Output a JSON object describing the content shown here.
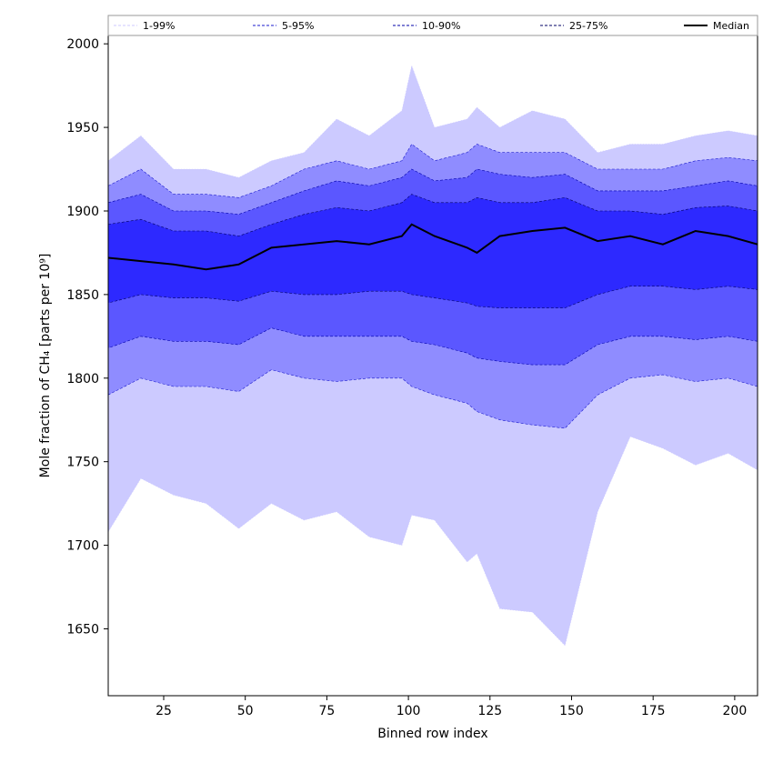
{
  "chart_data": {
    "type": "area",
    "xlabel": "Binned row index",
    "ylabel": "Mole fraction of CH₄ [parts per 10⁹]",
    "xlim": [
      8,
      207
    ],
    "ylim": [
      1610,
      2005
    ],
    "xticks": [
      25,
      50,
      75,
      100,
      125,
      150,
      175,
      200
    ],
    "yticks": [
      1650,
      1700,
      1750,
      1800,
      1850,
      1900,
      1950,
      2000
    ],
    "grid": false,
    "legend_position": "top, above plot area",
    "x": [
      8,
      18,
      28,
      38,
      48,
      58,
      68,
      78,
      88,
      98,
      101,
      108,
      118,
      121,
      128,
      138,
      148,
      158,
      168,
      178,
      188,
      198,
      207
    ],
    "bands": [
      {
        "name": "1-99%",
        "color": "#cccaff",
        "edge_color": "#cccaff",
        "lower": [
          1708,
          1740,
          1730,
          1725,
          1710,
          1725,
          1715,
          1720,
          1705,
          1700,
          1718,
          1715,
          1690,
          1695,
          1662,
          1660,
          1640,
          1720,
          1765,
          1758,
          1748,
          1755,
          1745
        ],
        "upper": [
          1930,
          1945,
          1925,
          1925,
          1920,
          1930,
          1935,
          1955,
          1945,
          1960,
          1987,
          1950,
          1955,
          1962,
          1950,
          1960,
          1955,
          1935,
          1940,
          1940,
          1945,
          1948,
          1945
        ]
      },
      {
        "name": "5-95%",
        "color": "#8f8cff",
        "edge_color": "#1a1acc",
        "lower": [
          1790,
          1800,
          1795,
          1795,
          1792,
          1805,
          1800,
          1798,
          1800,
          1800,
          1795,
          1790,
          1785,
          1780,
          1775,
          1772,
          1770,
          1790,
          1800,
          1802,
          1798,
          1800,
          1795
        ],
        "upper": [
          1915,
          1925,
          1910,
          1910,
          1908,
          1915,
          1925,
          1930,
          1925,
          1930,
          1940,
          1930,
          1935,
          1940,
          1935,
          1935,
          1935,
          1925,
          1925,
          1925,
          1930,
          1932,
          1930
        ]
      },
      {
        "name": "10-90%",
        "color": "#5b57ff",
        "edge_color": "#0000aa",
        "lower": [
          1818,
          1825,
          1822,
          1822,
          1820,
          1830,
          1825,
          1825,
          1825,
          1825,
          1822,
          1820,
          1815,
          1812,
          1810,
          1808,
          1808,
          1820,
          1825,
          1825,
          1823,
          1825,
          1822
        ],
        "upper": [
          1905,
          1910,
          1900,
          1900,
          1898,
          1905,
          1912,
          1918,
          1915,
          1920,
          1925,
          1918,
          1920,
          1925,
          1922,
          1920,
          1922,
          1912,
          1912,
          1912,
          1915,
          1918,
          1915
        ]
      },
      {
        "name": "25-75%",
        "color": "#2d29ff",
        "edge_color": "#000066",
        "lower": [
          1845,
          1850,
          1848,
          1848,
          1846,
          1852,
          1850,
          1850,
          1852,
          1852,
          1850,
          1848,
          1845,
          1843,
          1842,
          1842,
          1842,
          1850,
          1855,
          1855,
          1853,
          1855,
          1853
        ],
        "upper": [
          1892,
          1895,
          1888,
          1888,
          1885,
          1892,
          1898,
          1902,
          1900,
          1905,
          1910,
          1905,
          1905,
          1908,
          1905,
          1905,
          1908,
          1900,
          1900,
          1898,
          1902,
          1903,
          1900
        ]
      }
    ],
    "series": [
      {
        "name": "Median",
        "color": "#000000",
        "values": [
          1872,
          1870,
          1868,
          1865,
          1868,
          1878,
          1880,
          1882,
          1880,
          1885,
          1892,
          1885,
          1878,
          1875,
          1885,
          1888,
          1890,
          1882,
          1885,
          1880,
          1888,
          1885,
          1880
        ]
      }
    ]
  }
}
